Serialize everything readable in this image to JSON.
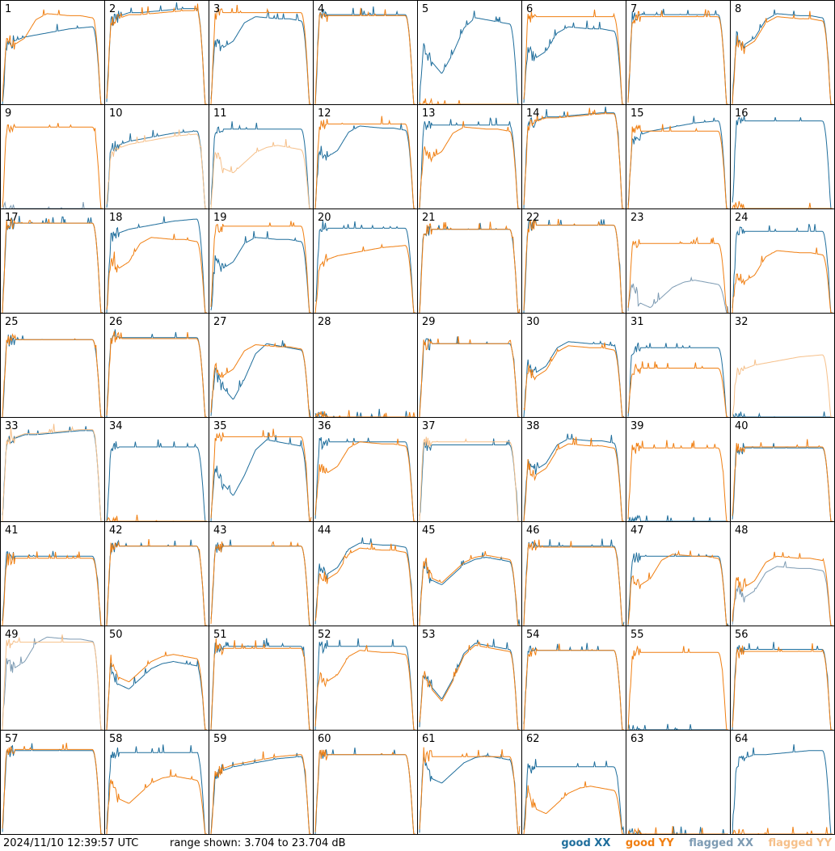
{
  "footer": {
    "timestamp": "2024/11/10 12:39:57 UTC",
    "range_text": "range shown: 3.704 to 23.704 dB"
  },
  "chart_data": {
    "type": "line",
    "layout": "small-multiples 8x8",
    "units": "dB",
    "ylim": [
      3.704,
      23.704
    ],
    "legend": [
      {
        "key": "good_xx",
        "label": "good XX",
        "color": "#1f6e9c"
      },
      {
        "key": "good_yy",
        "label": "good YY",
        "color": "#f07f12"
      },
      {
        "key": "flagged_xx",
        "label": "flagged XX",
        "color": "#7d9bb3"
      },
      {
        "key": "flagged_yy",
        "label": "flagged YY",
        "color": "#f6c08a"
      }
    ],
    "legend_placement": "bottom-right",
    "profiles": {
      "flat": [
        0.86,
        0.88,
        0.88,
        0.88,
        0.88,
        0.88,
        0.88,
        0.88,
        0.88,
        0.87
      ],
      "dip": [
        0.68,
        0.55,
        0.62,
        0.8,
        0.86,
        0.85,
        0.84,
        0.84,
        0.82,
        0.8
      ],
      "deepdip": [
        0.62,
        0.38,
        0.25,
        0.45,
        0.7,
        0.8,
        0.78,
        0.76,
        0.74,
        0.72
      ],
      "rise": [
        0.55,
        0.62,
        0.66,
        0.68,
        0.7,
        0.72,
        0.74,
        0.75,
        0.76,
        0.76
      ],
      "high": [
        0.8,
        0.86,
        0.9,
        0.9,
        0.91,
        0.92,
        0.93,
        0.94,
        0.94,
        0.93
      ],
      "lowdip": [
        0.68,
        0.4,
        0.35,
        0.45,
        0.55,
        0.6,
        0.62,
        0.6,
        0.58,
        0.55
      ],
      "none": [
        0,
        0,
        0,
        0,
        0,
        0,
        0,
        0,
        0,
        0
      ]
    },
    "panels": [
      {
        "n": "1",
        "xx": {
          "s": "good",
          "p": "rise",
          "o": 0.0
        },
        "yy": {
          "s": "good",
          "p": "dip",
          "o": 0.03
        }
      },
      {
        "n": "2",
        "xx": {
          "s": "good",
          "p": "high",
          "o": 0.0
        },
        "yy": {
          "s": "good",
          "p": "high",
          "o": -0.02
        }
      },
      {
        "n": "3",
        "xx": {
          "s": "good",
          "p": "dip",
          "o": 0.0
        },
        "yy": {
          "s": "good",
          "p": "flat",
          "o": 0.02
        }
      },
      {
        "n": "4",
        "xx": {
          "s": "good",
          "p": "flat",
          "o": 0.0
        },
        "yy": {
          "s": "good",
          "p": "flat",
          "o": -0.01
        }
      },
      {
        "n": "5",
        "xx": {
          "s": "good",
          "p": "deepdip",
          "o": 0.05
        },
        "yy": {
          "s": "good",
          "p": "none",
          "o": 0.0
        }
      },
      {
        "n": "6",
        "xx": {
          "s": "good",
          "p": "dip",
          "o": -0.1
        },
        "yy": {
          "s": "good",
          "p": "flat",
          "o": -0.02
        }
      },
      {
        "n": "7",
        "xx": {
          "s": "good",
          "p": "flat",
          "o": 0.0
        },
        "yy": {
          "s": "good",
          "p": "flat",
          "o": -0.02
        }
      },
      {
        "n": "8",
        "xx": {
          "s": "good",
          "p": "dip",
          "o": 0.03
        },
        "yy": {
          "s": "good",
          "p": "dip",
          "o": 0.0
        }
      },
      {
        "n": "9",
        "xx": {
          "s": "flagged",
          "p": "none",
          "o": 0.0
        },
        "yy": {
          "s": "good",
          "p": "flat",
          "o": -0.08
        }
      },
      {
        "n": "10",
        "xx": {
          "s": "good",
          "p": "rise",
          "o": 0.0
        },
        "yy": {
          "s": "flagged",
          "p": "rise",
          "o": -0.03
        }
      },
      {
        "n": "11",
        "xx": {
          "s": "good",
          "p": "flat",
          "o": -0.1
        },
        "yy": {
          "s": "flagged",
          "p": "lowdip",
          "o": 0.0
        }
      },
      {
        "n": "12",
        "xx": {
          "s": "good",
          "p": "dip",
          "o": -0.05
        },
        "yy": {
          "s": "good",
          "p": "flat",
          "o": -0.05
        }
      },
      {
        "n": "13",
        "xx": {
          "s": "good",
          "p": "flat",
          "o": -0.06
        },
        "yy": {
          "s": "good",
          "p": "dip",
          "o": -0.06
        }
      },
      {
        "n": "14",
        "xx": {
          "s": "good",
          "p": "high",
          "o": 0.0
        },
        "yy": {
          "s": "good",
          "p": "high",
          "o": -0.01
        }
      },
      {
        "n": "15",
        "xx": {
          "s": "good",
          "p": "rise",
          "o": 0.1
        },
        "yy": {
          "s": "good",
          "p": "flat",
          "o": -0.12
        }
      },
      {
        "n": "16",
        "xx": {
          "s": "good",
          "p": "flat",
          "o": -0.02
        },
        "yy": {
          "s": "good",
          "p": "none",
          "o": 0.0
        }
      },
      {
        "n": "17",
        "xx": {
          "s": "good",
          "p": "flat",
          "o": 0.0
        },
        "yy": {
          "s": "good",
          "p": "flat",
          "o": 0.0
        }
      },
      {
        "n": "18",
        "xx": {
          "s": "good",
          "p": "rise",
          "o": 0.16
        },
        "yy": {
          "s": "good",
          "p": "dip",
          "o": -0.12
        }
      },
      {
        "n": "19",
        "xx": {
          "s": "good",
          "p": "dip",
          "o": -0.12
        },
        "yy": {
          "s": "good",
          "p": "flat",
          "o": -0.03
        }
      },
      {
        "n": "20",
        "xx": {
          "s": "good",
          "p": "flat",
          "o": -0.05
        },
        "yy": {
          "s": "good",
          "p": "rise",
          "o": -0.1
        }
      },
      {
        "n": "21",
        "xx": {
          "s": "good",
          "p": "flat",
          "o": -0.06
        },
        "yy": {
          "s": "good",
          "p": "flat",
          "o": -0.06
        }
      },
      {
        "n": "22",
        "xx": {
          "s": "good",
          "p": "flat",
          "o": -0.02
        },
        "yy": {
          "s": "good",
          "p": "flat",
          "o": -0.02
        }
      },
      {
        "n": "23",
        "xx": {
          "s": "flagged",
          "p": "lowdip",
          "o": -0.3
        },
        "yy": {
          "s": "good",
          "p": "flat",
          "o": -0.2
        }
      },
      {
        "n": "24",
        "xx": {
          "s": "good",
          "p": "flat",
          "o": -0.08
        },
        "yy": {
          "s": "good",
          "p": "dip",
          "o": -0.25
        }
      },
      {
        "n": "25",
        "xx": {
          "s": "good",
          "p": "flat",
          "o": -0.12
        },
        "yy": {
          "s": "good",
          "p": "flat",
          "o": -0.12
        }
      },
      {
        "n": "26",
        "xx": {
          "s": "good",
          "p": "flat",
          "o": -0.1
        },
        "yy": {
          "s": "good",
          "p": "flat",
          "o": -0.11
        }
      },
      {
        "n": "27",
        "xx": {
          "s": "good",
          "p": "deepdip",
          "o": -0.08
        },
        "yy": {
          "s": "good",
          "p": "dip",
          "o": -0.15
        }
      },
      {
        "n": "28",
        "xx": {
          "s": "good",
          "p": "none",
          "o": 0.0
        },
        "yy": {
          "s": "good",
          "p": "none",
          "o": 0.0
        }
      },
      {
        "n": "29",
        "xx": {
          "s": "good",
          "p": "flat",
          "o": -0.16
        },
        "yy": {
          "s": "good",
          "p": "flat",
          "o": -0.16
        }
      },
      {
        "n": "30",
        "xx": {
          "s": "good",
          "p": "dip",
          "o": -0.12
        },
        "yy": {
          "s": "good",
          "p": "dip",
          "o": -0.16
        }
      },
      {
        "n": "31",
        "xx": {
          "s": "good",
          "p": "flat",
          "o": -0.2
        },
        "yy": {
          "s": "good",
          "p": "flat",
          "o": -0.4
        }
      },
      {
        "n": "32",
        "xx": {
          "s": "good",
          "p": "none",
          "o": 0.0
        },
        "yy": {
          "s": "flagged",
          "p": "rise",
          "o": -0.15
        }
      },
      {
        "n": "33",
        "xx": {
          "s": "good",
          "p": "high",
          "o": -0.05
        },
        "yy": {
          "s": "flagged",
          "p": "high",
          "o": -0.04
        }
      },
      {
        "n": "34",
        "xx": {
          "s": "good",
          "p": "flat",
          "o": -0.15
        },
        "yy": {
          "s": "good",
          "p": "none",
          "o": 0.0
        }
      },
      {
        "n": "35",
        "xx": {
          "s": "good",
          "p": "deepdip",
          "o": 0.0
        },
        "yy": {
          "s": "good",
          "p": "flat",
          "o": -0.05
        }
      },
      {
        "n": "36",
        "xx": {
          "s": "good",
          "p": "flat",
          "o": -0.1
        },
        "yy": {
          "s": "good",
          "p": "dip",
          "o": -0.08
        }
      },
      {
        "n": "37",
        "xx": {
          "s": "good",
          "p": "flat",
          "o": -0.13
        },
        "yy": {
          "s": "flagged",
          "p": "flat",
          "o": -0.1
        }
      },
      {
        "n": "38",
        "xx": {
          "s": "good",
          "p": "dip",
          "o": -0.05
        },
        "yy": {
          "s": "good",
          "p": "dip",
          "o": -0.1
        }
      },
      {
        "n": "39",
        "xx": {
          "s": "good",
          "p": "none",
          "o": 0.0
        },
        "yy": {
          "s": "good",
          "p": "flat",
          "o": -0.16
        }
      },
      {
        "n": "40",
        "xx": {
          "s": "good",
          "p": "flat",
          "o": -0.16
        },
        "yy": {
          "s": "good",
          "p": "flat",
          "o": -0.15
        }
      },
      {
        "n": "41",
        "xx": {
          "s": "good",
          "p": "flat",
          "o": -0.2
        },
        "yy": {
          "s": "good",
          "p": "flat",
          "o": -0.22
        }
      },
      {
        "n": "42",
        "xx": {
          "s": "good",
          "p": "flat",
          "o": -0.1
        },
        "yy": {
          "s": "good",
          "p": "flat",
          "o": -0.1
        }
      },
      {
        "n": "43",
        "xx": {
          "s": "good",
          "p": "flat",
          "o": -0.1
        },
        "yy": {
          "s": "good",
          "p": "flat",
          "o": -0.1
        }
      },
      {
        "n": "44",
        "xx": {
          "s": "good",
          "p": "dip",
          "o": -0.05
        },
        "yy": {
          "s": "good",
          "p": "dip",
          "o": -0.1
        }
      },
      {
        "n": "45",
        "xx": {
          "s": "good",
          "p": "lowdip",
          "o": 0.05
        },
        "yy": {
          "s": "good",
          "p": "lowdip",
          "o": 0.07
        }
      },
      {
        "n": "46",
        "xx": {
          "s": "good",
          "p": "flat",
          "o": -0.1
        },
        "yy": {
          "s": "good",
          "p": "flat",
          "o": -0.11
        }
      },
      {
        "n": "47",
        "xx": {
          "s": "good",
          "p": "flat",
          "o": -0.2
        },
        "yy": {
          "s": "good",
          "p": "dip",
          "o": -0.16
        }
      },
      {
        "n": "48",
        "xx": {
          "s": "flagged",
          "p": "dip",
          "o": -0.28
        },
        "yy": {
          "s": "good",
          "p": "dip",
          "o": -0.18
        }
      },
      {
        "n": "49",
        "xx": {
          "s": "flagged",
          "p": "dip",
          "o": 0.05
        },
        "yy": {
          "s": "flagged",
          "p": "flat",
          "o": -0.02
        }
      },
      {
        "n": "50",
        "xx": {
          "s": "good",
          "p": "lowdip",
          "o": 0.05
        },
        "yy": {
          "s": "good",
          "p": "lowdip",
          "o": 0.12
        }
      },
      {
        "n": "51",
        "xx": {
          "s": "good",
          "p": "flat",
          "o": -0.06
        },
        "yy": {
          "s": "good",
          "p": "flat",
          "o": -0.08
        }
      },
      {
        "n": "52",
        "xx": {
          "s": "good",
          "p": "flat",
          "o": -0.06
        },
        "yy": {
          "s": "good",
          "p": "dip",
          "o": -0.08
        }
      },
      {
        "n": "53",
        "xx": {
          "s": "good",
          "p": "deepdip",
          "o": 0.05
        },
        "yy": {
          "s": "good",
          "p": "deepdip",
          "o": 0.03
        }
      },
      {
        "n": "54",
        "xx": {
          "s": "good",
          "p": "flat",
          "o": -0.1
        },
        "yy": {
          "s": "good",
          "p": "flat",
          "o": -0.1
        }
      },
      {
        "n": "55",
        "xx": {
          "s": "good",
          "p": "none",
          "o": 0.0
        },
        "yy": {
          "s": "good",
          "p": "flat",
          "o": -0.12
        }
      },
      {
        "n": "56",
        "xx": {
          "s": "good",
          "p": "flat",
          "o": -0.09
        },
        "yy": {
          "s": "good",
          "p": "flat",
          "o": -0.11
        }
      },
      {
        "n": "57",
        "xx": {
          "s": "good",
          "p": "flat",
          "o": -0.06
        },
        "yy": {
          "s": "good",
          "p": "flat",
          "o": -0.05
        }
      },
      {
        "n": "58",
        "xx": {
          "s": "good",
          "p": "flat",
          "o": -0.08
        },
        "yy": {
          "s": "good",
          "p": "lowdip",
          "o": -0.05
        }
      },
      {
        "n": "59",
        "xx": {
          "s": "good",
          "p": "rise",
          "o": 0.0
        },
        "yy": {
          "s": "good",
          "p": "rise",
          "o": 0.02
        }
      },
      {
        "n": "60",
        "xx": {
          "s": "good",
          "p": "flat",
          "o": -0.1
        },
        "yy": {
          "s": "good",
          "p": "flat",
          "o": -0.1
        }
      },
      {
        "n": "61",
        "xx": {
          "s": "good",
          "p": "lowdip",
          "o": 0.15
        },
        "yy": {
          "s": "good",
          "p": "flat",
          "o": -0.12
        }
      },
      {
        "n": "62",
        "xx": {
          "s": "good",
          "p": "flat",
          "o": -0.22
        },
        "yy": {
          "s": "good",
          "p": "lowdip",
          "o": -0.15
        }
      },
      {
        "n": "63",
        "xx": {
          "s": "good",
          "p": "none",
          "o": 0.0
        },
        "yy": {
          "s": "good",
          "p": "none",
          "o": 0.0
        }
      },
      {
        "n": "64",
        "xx": {
          "s": "good",
          "p": "high",
          "o": -0.12
        },
        "yy": {
          "s": "good",
          "p": "none",
          "o": 0.0
        }
      }
    ]
  }
}
